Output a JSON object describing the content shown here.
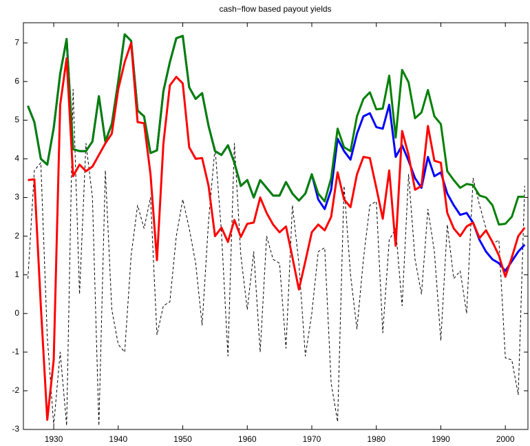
{
  "chart_data": {
    "type": "line",
    "title": "cash−flow based payout yields",
    "x": [
      1926,
      1927,
      1928,
      1929,
      1930,
      1931,
      1932,
      1933,
      1934,
      1935,
      1936,
      1937,
      1938,
      1939,
      1940,
      1941,
      1942,
      1943,
      1944,
      1945,
      1946,
      1947,
      1948,
      1949,
      1950,
      1951,
      1952,
      1953,
      1954,
      1955,
      1956,
      1957,
      1958,
      1959,
      1960,
      1961,
      1962,
      1963,
      1964,
      1965,
      1966,
      1967,
      1968,
      1969,
      1970,
      1971,
      1972,
      1973,
      1974,
      1975,
      1976,
      1977,
      1978,
      1979,
      1980,
      1981,
      1982,
      1983,
      1984,
      1985,
      1986,
      1987,
      1988,
      1989,
      1990,
      1991,
      1992,
      1993,
      1994,
      1995,
      1996,
      1997,
      1998,
      1999,
      2000,
      2001,
      2002,
      2003
    ],
    "series": [
      {
        "color": "#000000",
        "line_style": "dashed",
        "width": 1,
        "values": [
          0.9,
          3.7,
          3.9,
          -0.6,
          -2.9,
          -1.0,
          -2.9,
          5.8,
          0.5,
          4.4,
          3.0,
          -2.9,
          3.7,
          0.1,
          -0.8,
          -1.0,
          1.5,
          2.8,
          2.2,
          3.0,
          -0.55,
          0.2,
          0.3,
          2.0,
          2.95,
          2.2,
          1.3,
          -0.3,
          2.4,
          4.3,
          2.1,
          -1.1,
          4.4,
          1.5,
          0.1,
          1.6,
          -1.0,
          2.0,
          1.4,
          1.3,
          -0.9,
          2.8,
          1.3,
          -1.1,
          0.0,
          1.6,
          1.7,
          -1.8,
          -2.8,
          3.3,
          1.0,
          -0.4,
          1.4,
          2.8,
          2.9,
          -0.5,
          1.9,
          2.2,
          0.2,
          3.6,
          1.4,
          0.5,
          2.7,
          1.6,
          -0.7,
          2.3,
          0.9,
          1.1,
          0.0,
          3.5,
          2.8,
          2.2,
          1.8,
          1.9,
          -1.15,
          -1.2,
          -2.1,
          3.3
        ]
      },
      {
        "color": "#0000ff",
        "line_style": "solid",
        "width": 3,
        "values": [
          5.37,
          4.95,
          4.0,
          3.85,
          4.8,
          6.2,
          7.1,
          4.25,
          4.2,
          4.2,
          4.45,
          5.62,
          4.45,
          4.9,
          6.0,
          7.22,
          7.05,
          5.25,
          5.1,
          4.15,
          4.22,
          5.75,
          6.5,
          7.12,
          7.18,
          5.85,
          5.55,
          5.7,
          4.85,
          4.2,
          4.1,
          4.35,
          3.9,
          3.3,
          3.45,
          3.0,
          3.45,
          3.25,
          3.05,
          3.05,
          3.4,
          3.1,
          2.92,
          3.1,
          3.6,
          2.95,
          2.7,
          3.2,
          4.52,
          4.2,
          3.98,
          4.65,
          5.1,
          5.18,
          4.82,
          4.78,
          5.4,
          4.05,
          4.35,
          3.95,
          3.5,
          3.25,
          4.05,
          3.55,
          3.65,
          3.1,
          2.8,
          2.55,
          2.6,
          2.35,
          1.9,
          1.6,
          1.4,
          1.3,
          1.1,
          1.35,
          1.6,
          1.78
        ]
      },
      {
        "color": "#008000",
        "line_style": "solid",
        "width": 3,
        "values": [
          5.37,
          4.95,
          4.0,
          3.85,
          4.8,
          6.2,
          7.1,
          4.25,
          4.2,
          4.2,
          4.45,
          5.62,
          4.45,
          4.9,
          6.0,
          7.22,
          7.05,
          5.25,
          5.1,
          4.15,
          4.22,
          5.75,
          6.5,
          7.12,
          7.18,
          5.85,
          5.55,
          5.7,
          4.85,
          4.2,
          4.1,
          4.35,
          3.9,
          3.3,
          3.45,
          3.0,
          3.45,
          3.25,
          3.05,
          3.05,
          3.4,
          3.1,
          2.92,
          3.1,
          3.6,
          3.1,
          2.9,
          3.5,
          4.78,
          4.3,
          4.2,
          5.1,
          5.55,
          5.72,
          5.28,
          5.3,
          6.15,
          4.55,
          6.3,
          5.98,
          5.05,
          5.2,
          5.78,
          5.1,
          4.9,
          3.68,
          3.45,
          3.25,
          3.35,
          3.32,
          3.05,
          3.0,
          2.8,
          2.3,
          2.32,
          2.5,
          3.02,
          3.02
        ]
      },
      {
        "color": "#ff0000",
        "line_style": "solid",
        "width": 3,
        "values": [
          3.45,
          3.47,
          0.2,
          -2.75,
          -1.2,
          5.4,
          6.6,
          3.55,
          3.85,
          3.68,
          3.8,
          4.1,
          4.4,
          4.65,
          5.8,
          6.5,
          7.0,
          4.95,
          4.92,
          3.6,
          1.38,
          4.4,
          5.9,
          6.12,
          5.95,
          4.3,
          4.0,
          4.02,
          3.3,
          2.0,
          2.22,
          1.85,
          2.42,
          1.98,
          2.32,
          2.35,
          3.0,
          2.6,
          2.3,
          2.1,
          2.25,
          1.45,
          0.62,
          1.35,
          2.1,
          2.3,
          2.15,
          2.5,
          3.65,
          2.95,
          2.75,
          3.6,
          4.05,
          4.02,
          3.25,
          2.45,
          3.7,
          1.75,
          4.72,
          4.1,
          3.2,
          3.3,
          4.85,
          3.95,
          3.9,
          2.6,
          2.2,
          2.0,
          2.25,
          2.35,
          1.95,
          2.15,
          1.85,
          1.5,
          0.95,
          1.45,
          2.0,
          2.22
        ]
      }
    ],
    "xlim": [
      1925.3,
      2003.5
    ],
    "xticks": [
      1930,
      1940,
      1950,
      1960,
      1970,
      1980,
      1990,
      2000
    ],
    "ylim": [
      -3,
      7.52
    ],
    "yticks": [
      -3,
      -2,
      -1,
      0,
      1,
      2,
      3,
      4,
      5,
      6,
      7
    ],
    "grid": false
  }
}
